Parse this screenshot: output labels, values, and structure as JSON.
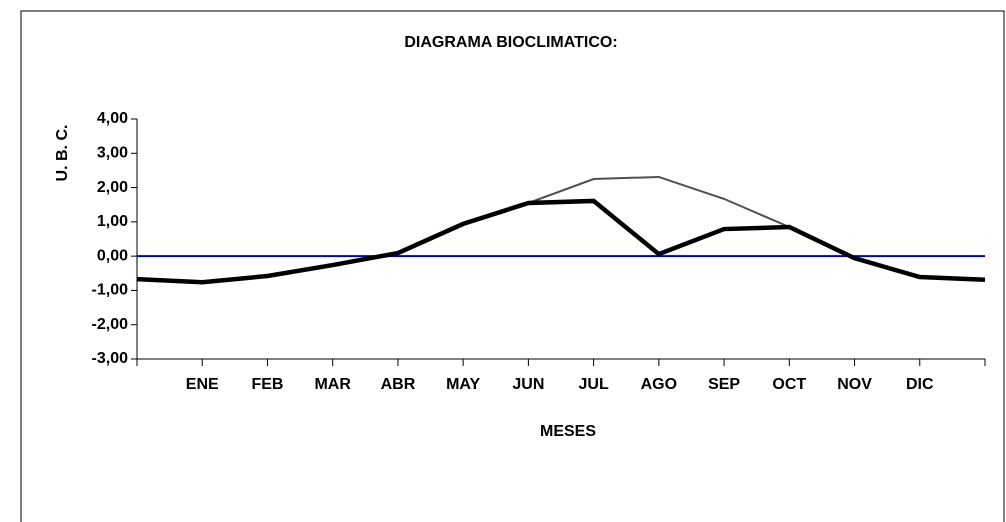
{
  "chart_data": {
    "type": "line",
    "title": "DIAGRAMA BIOCLIMATICO:",
    "ylabel": "U. B. C.",
    "xlabel": "MESES",
    "categories": [
      null,
      "ENE",
      "FEB",
      "MAR",
      "ABR",
      "MAY",
      "JUN",
      "JUL",
      "AGO",
      "SEP",
      "OCT",
      "NOV",
      "DIC",
      null
    ],
    "series": [
      {
        "color": "#0000cc",
        "width": 2,
        "values": [
          0,
          0,
          0,
          0,
          0,
          0,
          0,
          0,
          0,
          0,
          0,
          0,
          0,
          0
        ]
      },
      {
        "color": "#505050",
        "width": 2,
        "values": [
          -0.67,
          -0.76,
          -0.58,
          -0.26,
          0.09,
          0.94,
          1.55,
          2.25,
          2.31,
          1.67,
          0.85,
          -0.06,
          -0.61,
          -0.69
        ]
      },
      {
        "color": "#000000",
        "width": 4.5,
        "values": [
          -0.67,
          -0.76,
          -0.58,
          -0.26,
          0.09,
          0.94,
          1.55,
          1.61,
          0.06,
          0.79,
          0.85,
          -0.06,
          -0.61,
          -0.69
        ]
      }
    ],
    "ylim": [
      -3,
      4
    ],
    "yticks": [
      {
        "value": -3,
        "label": "-3,00"
      },
      {
        "value": -2,
        "label": "-2,00"
      },
      {
        "value": -1,
        "label": "-1,00"
      },
      {
        "value": 0,
        "label": "0,00"
      },
      {
        "value": 1,
        "label": "1,00"
      },
      {
        "value": 2,
        "label": "2,00"
      },
      {
        "value": 3,
        "label": "3,00"
      },
      {
        "value": 4,
        "label": "4,00"
      }
    ],
    "grid": false
  }
}
